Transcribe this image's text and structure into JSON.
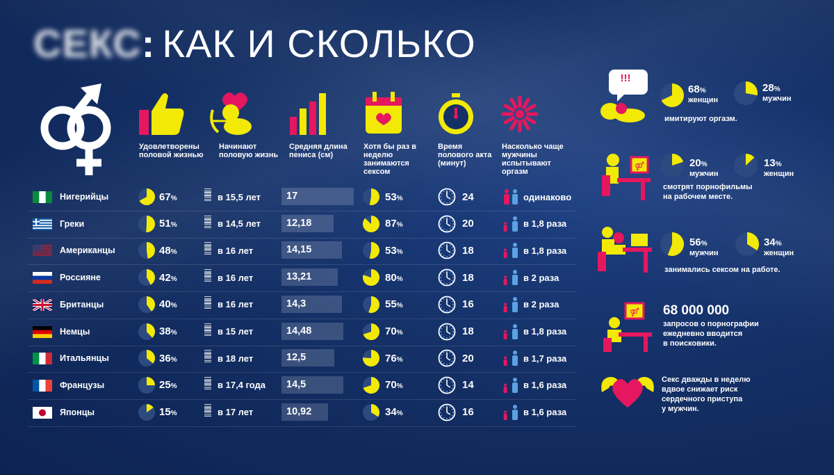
{
  "title": {
    "blurred": "СЕКС",
    "colon": ":",
    "rest": "КАК И СКОЛЬКО"
  },
  "colors": {
    "yellow": "#f2ea06",
    "magenta": "#e5175f",
    "blue": "#2f6fb5",
    "bg": "#143066",
    "light_blue": "#5aa2e3"
  },
  "columns": [
    {
      "icon": "thumbs-up-icon",
      "label": "Удовлетворены половой жизнью"
    },
    {
      "icon": "cupid-icon",
      "label": "Начинают половую жизнь"
    },
    {
      "icon": "bar-chart-icon",
      "label": "Средняя длина пениса (см)"
    },
    {
      "icon": "calendar-heart-icon",
      "label": "Хотя бы раз в неделю занимаются сексом"
    },
    {
      "icon": "stopwatch-icon",
      "label": "Время полового акта (минут)"
    },
    {
      "icon": "firework-icon",
      "label": "Насколько чаще мужчины испытывают оргазм"
    }
  ],
  "rows": [
    {
      "country": "Нигерийцы",
      "flag": "nigeria",
      "satisfied": 67,
      "satisfied_label": "67",
      "start_age": "в 15,5 лет",
      "length": 17,
      "length_label": "17",
      "weekly": 53,
      "weekly_label": "53",
      "minutes": "24",
      "ratio": "одинаково"
    },
    {
      "country": "Греки",
      "flag": "greece",
      "satisfied": 51,
      "satisfied_label": "51",
      "start_age": "в 14,5 лет",
      "length": 12.18,
      "length_label": "12,18",
      "weekly": 87,
      "weekly_label": "87",
      "minutes": "20",
      "ratio": "в 1,8 раза"
    },
    {
      "country": "Американцы",
      "flag": "usa",
      "satisfied": 48,
      "satisfied_label": "48",
      "start_age": "в 16 лет",
      "length": 14.15,
      "length_label": "14,15",
      "weekly": 53,
      "weekly_label": "53",
      "minutes": "18",
      "ratio": "в 1,8 раза"
    },
    {
      "country": "Россияне",
      "flag": "russia",
      "satisfied": 42,
      "satisfied_label": "42",
      "start_age": "в 16 лет",
      "length": 13.21,
      "length_label": "13,21",
      "weekly": 80,
      "weekly_label": "80",
      "minutes": "18",
      "ratio": "в 2 раза"
    },
    {
      "country": "Британцы",
      "flag": "uk",
      "satisfied": 40,
      "satisfied_label": "40",
      "start_age": "в 16 лет",
      "length": 14.3,
      "length_label": "14,3",
      "weekly": 55,
      "weekly_label": "55",
      "minutes": "16",
      "ratio": "в 2 раза"
    },
    {
      "country": "Немцы",
      "flag": "germany",
      "satisfied": 38,
      "satisfied_label": "38",
      "start_age": "в 15 лет",
      "length": 14.48,
      "length_label": "14,48",
      "weekly": 70,
      "weekly_label": "70",
      "minutes": "18",
      "ratio": "в 1,8 раза"
    },
    {
      "country": "Итальянцы",
      "flag": "italy",
      "satisfied": 36,
      "satisfied_label": "36",
      "start_age": "в 18 лет",
      "length": 12.5,
      "length_label": "12,5",
      "weekly": 76,
      "weekly_label": "76",
      "minutes": "20",
      "ratio": "в 1,7 раза"
    },
    {
      "country": "Французы",
      "flag": "france",
      "satisfied": 25,
      "satisfied_label": "25",
      "start_age": "в 17,4 года",
      "length": 14.5,
      "length_label": "14,5",
      "weekly": 70,
      "weekly_label": "70",
      "minutes": "14",
      "ratio": "в 1,6 раза"
    },
    {
      "country": "Японцы",
      "flag": "japan",
      "satisfied": 15,
      "satisfied_label": "15",
      "start_age": "в 17 лет",
      "length": 10.92,
      "length_label": "10,92",
      "weekly": 34,
      "weekly_label": "34",
      "minutes": "16",
      "ratio": "в 1,6 раза"
    }
  ],
  "pct_sign": "%",
  "right": {
    "fake": {
      "icon": "couple-speech-icon",
      "alert": "!!!",
      "a_pct": 68,
      "a_pct_label": "68",
      "a_sub": "женщин",
      "b_pct": 28,
      "b_pct_label": "28",
      "b_sub": "мужчин",
      "text": "имитируют оргазм."
    },
    "porn_work": {
      "icon": "office-worker-icon",
      "a_pct": 20,
      "a_pct_label": "20",
      "a_sub": "мужчин",
      "b_pct": 13,
      "b_pct_label": "13",
      "b_sub": "женщин",
      "text1": "смотрят порнофильмы",
      "text2": "на рабочем месте."
    },
    "sex_work": {
      "icon": "office-couple-icon",
      "a_pct": 56,
      "a_pct_label": "56",
      "a_sub": "мужчин",
      "b_pct": 34,
      "b_pct_label": "34",
      "b_sub": "женщин",
      "text": "занимались сексом на работе."
    },
    "queries": {
      "icon": "computer-user-icon",
      "number": "68 000 000",
      "text1": "запросов о порнографии",
      "text2": "ежедневно вводится",
      "text3": "в поисковики."
    },
    "heart": {
      "icon": "strong-heart-icon",
      "text1": "Секс дважды в неделю",
      "text2": "вдвое снижает риск",
      "text3": "сердечного приступа",
      "text4": "у мужчин."
    }
  }
}
